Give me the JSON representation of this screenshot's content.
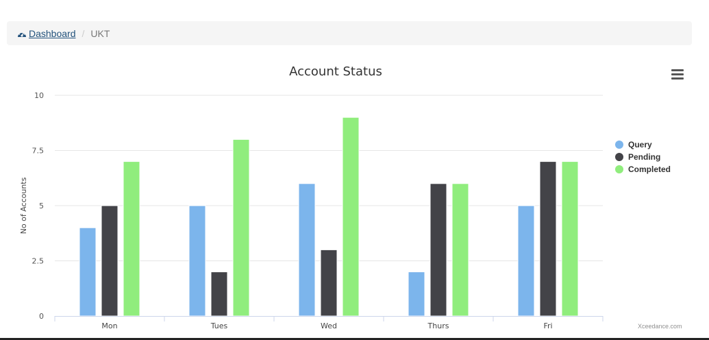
{
  "breadcrumb": {
    "home_label": "Dashboard",
    "home_icon": "dashboard-icon",
    "current": "UKT"
  },
  "chart_data": {
    "type": "bar",
    "title": "Account Status",
    "xlabel": "",
    "ylabel": "No of Accounts",
    "categories": [
      "Mon",
      "Tues",
      "Wed",
      "Thurs",
      "Fri"
    ],
    "ylim": [
      0,
      10
    ],
    "yticks": [
      0,
      2.5,
      5,
      7.5,
      10
    ],
    "ytick_labels": [
      "0",
      "2.5",
      "5",
      "7.5",
      "10"
    ],
    "grid": true,
    "legend": "right",
    "series": [
      {
        "name": "Query",
        "color": "#7cb5ec",
        "values": [
          4,
          5,
          6,
          2,
          5
        ]
      },
      {
        "name": "Pending",
        "color": "#434348",
        "values": [
          5,
          2,
          3,
          6,
          7
        ]
      },
      {
        "name": "Completed",
        "color": "#90ed7d",
        "values": [
          7,
          8,
          9,
          6,
          7
        ]
      }
    ]
  },
  "menu_icon": "hamburger-menu-icon",
  "credits": "Xceedance.com"
}
